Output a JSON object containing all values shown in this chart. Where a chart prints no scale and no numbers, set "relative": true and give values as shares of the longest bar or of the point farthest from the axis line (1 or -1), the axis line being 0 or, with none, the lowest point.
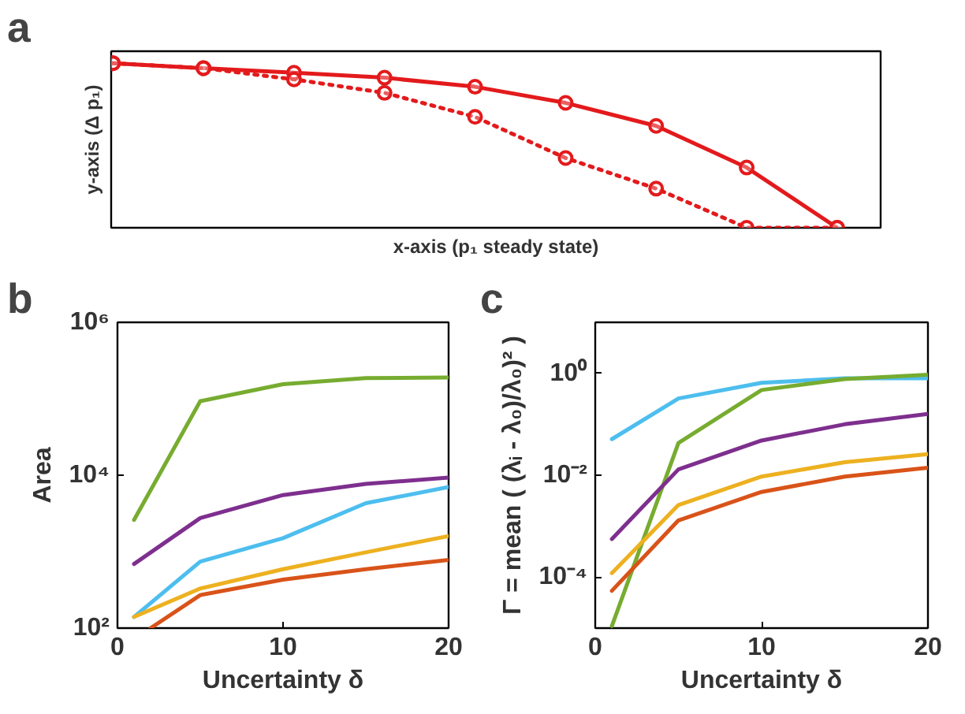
{
  "chart_data": [
    {
      "type": "line",
      "relative": true,
      "xlabel": "x-axis (p₁ steady state)",
      "ylabel": "y-axis (Δ p₁)",
      "annotations": [
        "a"
      ],
      "marker": "circle",
      "grid": false,
      "categories": [
        null,
        null,
        null,
        null,
        null,
        null,
        null,
        null,
        null
      ],
      "series": [
        {
          "color": "#e31a1c",
          "line_style": "solid",
          "values": [
            1,
            0.97,
            0.942,
            0.912,
            0.857,
            0.759,
            0.619,
            0.366,
            0
          ]
        },
        {
          "color": "#e31a1c",
          "line_style": "dotted",
          "values": [
            1,
            0.97,
            0.902,
            0.82,
            0.674,
            0.424,
            0.238,
            0,
            0
          ]
        }
      ]
    },
    {
      "type": "line",
      "xlabel": "Uncertainty δ",
      "ylabel": "Area",
      "annotations": [
        "b"
      ],
      "log": "y",
      "grid": false,
      "x": [
        1,
        5,
        10,
        15,
        20
      ],
      "xlim": [
        0,
        20
      ],
      "xticks": [
        0,
        10,
        20
      ],
      "ylim": [
        100,
        1000000
      ],
      "yticks": [
        {
          "value": 100,
          "label": "10²"
        },
        {
          "value": 10000,
          "label": "10⁴"
        },
        {
          "value": 1000000,
          "label": "10⁶"
        }
      ],
      "series": [
        {
          "color": "#77ac30",
          "values": [
            2600,
            93000,
            155000,
            186000,
            190000
          ]
        },
        {
          "color": "#7e2f8e",
          "values": [
            690,
            2750,
            5500,
            7700,
            9300
          ]
        },
        {
          "color": "#4dbeee",
          "values": [
            140,
            740,
            1500,
            4300,
            7000
          ]
        },
        {
          "color": "#edb120",
          "values": [
            140,
            330,
            590,
            980,
            1600
          ]
        },
        {
          "color": "#d95319",
          "x": [
            2,
            5,
            10,
            15,
            20
          ],
          "values": [
            100,
            270,
            430,
            590,
            780
          ]
        }
      ]
    },
    {
      "type": "line",
      "xlabel": "Uncertainty δ",
      "ylabel": "Γ = mean ( (λᵢ - λ₀)/λ₀)² )",
      "annotations": [
        "c"
      ],
      "log": "y",
      "grid": false,
      "x": [
        1,
        5,
        10,
        15,
        20
      ],
      "xlim": [
        0,
        20
      ],
      "xticks": [
        0,
        10,
        20
      ],
      "ylim": [
        1e-05,
        10
      ],
      "yticks": [
        {
          "value": 0.0001,
          "label": "10⁻⁴"
        },
        {
          "value": 0.01,
          "label": "10⁻²"
        },
        {
          "value": 1,
          "label": "10⁰"
        }
      ],
      "series": [
        {
          "color": "#4dbeee",
          "values": [
            0.051,
            0.32,
            0.65,
            0.8,
            0.8
          ]
        },
        {
          "color": "#77ac30",
          "values": [
            1.1e-05,
            0.043,
            0.47,
            0.77,
            0.94
          ]
        },
        {
          "color": "#7e2f8e",
          "values": [
            0.00056,
            0.013,
            0.048,
            0.1,
            0.16
          ]
        },
        {
          "color": "#edb120",
          "values": [
            0.00012,
            0.0026,
            0.0094,
            0.018,
            0.026
          ]
        },
        {
          "color": "#d95319",
          "values": [
            5.4e-05,
            0.0013,
            0.0047,
            0.0094,
            0.014
          ]
        }
      ]
    }
  ]
}
